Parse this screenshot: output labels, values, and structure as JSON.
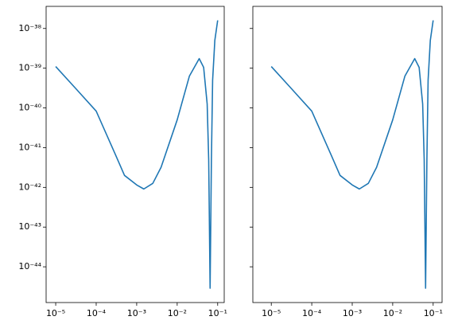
{
  "chart_data": [
    {
      "type": "line",
      "log_x": true,
      "log_y": true,
      "x": [
        1e-05,
        3.2e-05,
        0.0001,
        0.0003,
        0.0005,
        0.001,
        0.0015,
        0.0025,
        0.004,
        0.01,
        0.02,
        0.035,
        0.045,
        0.055,
        0.06,
        0.065,
        0.07,
        0.075,
        0.085,
        0.1
      ],
      "series": [
        {
          "color": "#1f77b4",
          "values": [
            1.1e-39,
            3e-40,
            8.3e-41,
            6.6e-42,
            2e-42,
            1.15e-42,
            9.1e-43,
            1.26e-42,
            3.2e-42,
            5e-41,
            6.3e-40,
            1.74e-39,
            1.05e-39,
            1.26e-40,
            5e-42,
            2.9e-45,
            5e-42,
            5e-40,
            5e-39,
            1.6e-38
          ]
        }
      ],
      "xlim": [
        5.8e-06,
        0.145
      ],
      "ylim": [
        1.26e-45,
        3.6e-38
      ],
      "xticks": [
        {
          "value": 1e-05,
          "label": "10⁻⁵"
        },
        {
          "value": 0.0001,
          "label": "10⁻⁴"
        },
        {
          "value": 0.001,
          "label": "10⁻³"
        },
        {
          "value": 0.01,
          "label": "10⁻²"
        },
        {
          "value": 0.1,
          "label": "10⁻¹"
        }
      ],
      "yticks": [
        {
          "value": 1e-38,
          "label": "10⁻³⁸"
        },
        {
          "value": 1e-39,
          "label": "10⁻³⁹"
        },
        {
          "value": 1e-40,
          "label": "10⁻⁴⁰"
        },
        {
          "value": 1e-41,
          "label": "10⁻⁴¹"
        },
        {
          "value": 1e-42,
          "label": "10⁻⁴²"
        },
        {
          "value": 1e-43,
          "label": "10⁻⁴³"
        },
        {
          "value": 1e-44,
          "label": "10⁻⁴⁴"
        }
      ]
    },
    {
      "type": "line",
      "log_x": true,
      "log_y": true,
      "x": [
        1e-05,
        3.2e-05,
        0.0001,
        0.0003,
        0.0005,
        0.001,
        0.0015,
        0.0025,
        0.004,
        0.01,
        0.02,
        0.035,
        0.045,
        0.055,
        0.06,
        0.065,
        0.07,
        0.075,
        0.085,
        0.1
      ],
      "series": [
        {
          "color": "#1f77b4",
          "values": [
            1.1e-39,
            3e-40,
            8.3e-41,
            6.6e-42,
            2e-42,
            1.15e-42,
            9.1e-43,
            1.26e-42,
            3.2e-42,
            5e-41,
            6.3e-40,
            1.74e-39,
            1.05e-39,
            1.26e-40,
            5e-42,
            2.9e-45,
            5e-42,
            5e-40,
            5e-39,
            1.6e-38
          ]
        }
      ],
      "xlim": [
        3.5e-06,
        0.166
      ],
      "ylim": [
        1.26e-45,
        3.6e-38
      ],
      "xticks": [
        {
          "value": 1e-05,
          "label": "10⁻⁵"
        },
        {
          "value": 0.0001,
          "label": "10⁻⁴"
        },
        {
          "value": 0.001,
          "label": "10⁻³"
        },
        {
          "value": 0.01,
          "label": "10⁻²"
        },
        {
          "value": 0.1,
          "label": "10⁻¹"
        }
      ],
      "yticks": [
        1e-38,
        1e-39,
        1e-40,
        1e-41,
        1e-42,
        1e-43,
        1e-44
      ]
    }
  ]
}
